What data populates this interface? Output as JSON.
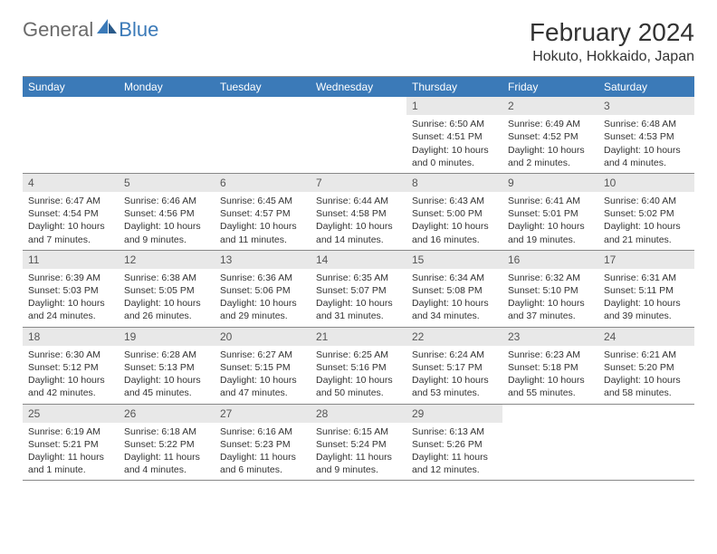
{
  "logo": {
    "text1": "General",
    "text2": "Blue"
  },
  "title": "February 2024",
  "location": "Hokuto, Hokkaido, Japan",
  "colors": {
    "header_bg": "#3b7ab8",
    "header_text": "#ffffff",
    "daynum_bg": "#e8e8e8",
    "daynum_text": "#555555",
    "body_text": "#333333",
    "logo_gray": "#6b6b6b",
    "logo_blue": "#3b7ab8",
    "divider": "#888888"
  },
  "fonts": {
    "title_size": 28,
    "location_size": 16,
    "weekday_size": 12,
    "daynum_size": 12,
    "body_size": 10.5
  },
  "weekdays": [
    "Sunday",
    "Monday",
    "Tuesday",
    "Wednesday",
    "Thursday",
    "Friday",
    "Saturday"
  ],
  "weeks": [
    [
      null,
      null,
      null,
      null,
      {
        "n": "1",
        "sr": "Sunrise: 6:50 AM",
        "ss": "Sunset: 4:51 PM",
        "dl": "Daylight: 10 hours and 0 minutes."
      },
      {
        "n": "2",
        "sr": "Sunrise: 6:49 AM",
        "ss": "Sunset: 4:52 PM",
        "dl": "Daylight: 10 hours and 2 minutes."
      },
      {
        "n": "3",
        "sr": "Sunrise: 6:48 AM",
        "ss": "Sunset: 4:53 PM",
        "dl": "Daylight: 10 hours and 4 minutes."
      }
    ],
    [
      {
        "n": "4",
        "sr": "Sunrise: 6:47 AM",
        "ss": "Sunset: 4:54 PM",
        "dl": "Daylight: 10 hours and 7 minutes."
      },
      {
        "n": "5",
        "sr": "Sunrise: 6:46 AM",
        "ss": "Sunset: 4:56 PM",
        "dl": "Daylight: 10 hours and 9 minutes."
      },
      {
        "n": "6",
        "sr": "Sunrise: 6:45 AM",
        "ss": "Sunset: 4:57 PM",
        "dl": "Daylight: 10 hours and 11 minutes."
      },
      {
        "n": "7",
        "sr": "Sunrise: 6:44 AM",
        "ss": "Sunset: 4:58 PM",
        "dl": "Daylight: 10 hours and 14 minutes."
      },
      {
        "n": "8",
        "sr": "Sunrise: 6:43 AM",
        "ss": "Sunset: 5:00 PM",
        "dl": "Daylight: 10 hours and 16 minutes."
      },
      {
        "n": "9",
        "sr": "Sunrise: 6:41 AM",
        "ss": "Sunset: 5:01 PM",
        "dl": "Daylight: 10 hours and 19 minutes."
      },
      {
        "n": "10",
        "sr": "Sunrise: 6:40 AM",
        "ss": "Sunset: 5:02 PM",
        "dl": "Daylight: 10 hours and 21 minutes."
      }
    ],
    [
      {
        "n": "11",
        "sr": "Sunrise: 6:39 AM",
        "ss": "Sunset: 5:03 PM",
        "dl": "Daylight: 10 hours and 24 minutes."
      },
      {
        "n": "12",
        "sr": "Sunrise: 6:38 AM",
        "ss": "Sunset: 5:05 PM",
        "dl": "Daylight: 10 hours and 26 minutes."
      },
      {
        "n": "13",
        "sr": "Sunrise: 6:36 AM",
        "ss": "Sunset: 5:06 PM",
        "dl": "Daylight: 10 hours and 29 minutes."
      },
      {
        "n": "14",
        "sr": "Sunrise: 6:35 AM",
        "ss": "Sunset: 5:07 PM",
        "dl": "Daylight: 10 hours and 31 minutes."
      },
      {
        "n": "15",
        "sr": "Sunrise: 6:34 AM",
        "ss": "Sunset: 5:08 PM",
        "dl": "Daylight: 10 hours and 34 minutes."
      },
      {
        "n": "16",
        "sr": "Sunrise: 6:32 AM",
        "ss": "Sunset: 5:10 PM",
        "dl": "Daylight: 10 hours and 37 minutes."
      },
      {
        "n": "17",
        "sr": "Sunrise: 6:31 AM",
        "ss": "Sunset: 5:11 PM",
        "dl": "Daylight: 10 hours and 39 minutes."
      }
    ],
    [
      {
        "n": "18",
        "sr": "Sunrise: 6:30 AM",
        "ss": "Sunset: 5:12 PM",
        "dl": "Daylight: 10 hours and 42 minutes."
      },
      {
        "n": "19",
        "sr": "Sunrise: 6:28 AM",
        "ss": "Sunset: 5:13 PM",
        "dl": "Daylight: 10 hours and 45 minutes."
      },
      {
        "n": "20",
        "sr": "Sunrise: 6:27 AM",
        "ss": "Sunset: 5:15 PM",
        "dl": "Daylight: 10 hours and 47 minutes."
      },
      {
        "n": "21",
        "sr": "Sunrise: 6:25 AM",
        "ss": "Sunset: 5:16 PM",
        "dl": "Daylight: 10 hours and 50 minutes."
      },
      {
        "n": "22",
        "sr": "Sunrise: 6:24 AM",
        "ss": "Sunset: 5:17 PM",
        "dl": "Daylight: 10 hours and 53 minutes."
      },
      {
        "n": "23",
        "sr": "Sunrise: 6:23 AM",
        "ss": "Sunset: 5:18 PM",
        "dl": "Daylight: 10 hours and 55 minutes."
      },
      {
        "n": "24",
        "sr": "Sunrise: 6:21 AM",
        "ss": "Sunset: 5:20 PM",
        "dl": "Daylight: 10 hours and 58 minutes."
      }
    ],
    [
      {
        "n": "25",
        "sr": "Sunrise: 6:19 AM",
        "ss": "Sunset: 5:21 PM",
        "dl": "Daylight: 11 hours and 1 minute."
      },
      {
        "n": "26",
        "sr": "Sunrise: 6:18 AM",
        "ss": "Sunset: 5:22 PM",
        "dl": "Daylight: 11 hours and 4 minutes."
      },
      {
        "n": "27",
        "sr": "Sunrise: 6:16 AM",
        "ss": "Sunset: 5:23 PM",
        "dl": "Daylight: 11 hours and 6 minutes."
      },
      {
        "n": "28",
        "sr": "Sunrise: 6:15 AM",
        "ss": "Sunset: 5:24 PM",
        "dl": "Daylight: 11 hours and 9 minutes."
      },
      {
        "n": "29",
        "sr": "Sunrise: 6:13 AM",
        "ss": "Sunset: 5:26 PM",
        "dl": "Daylight: 11 hours and 12 minutes."
      },
      null,
      null
    ]
  ]
}
